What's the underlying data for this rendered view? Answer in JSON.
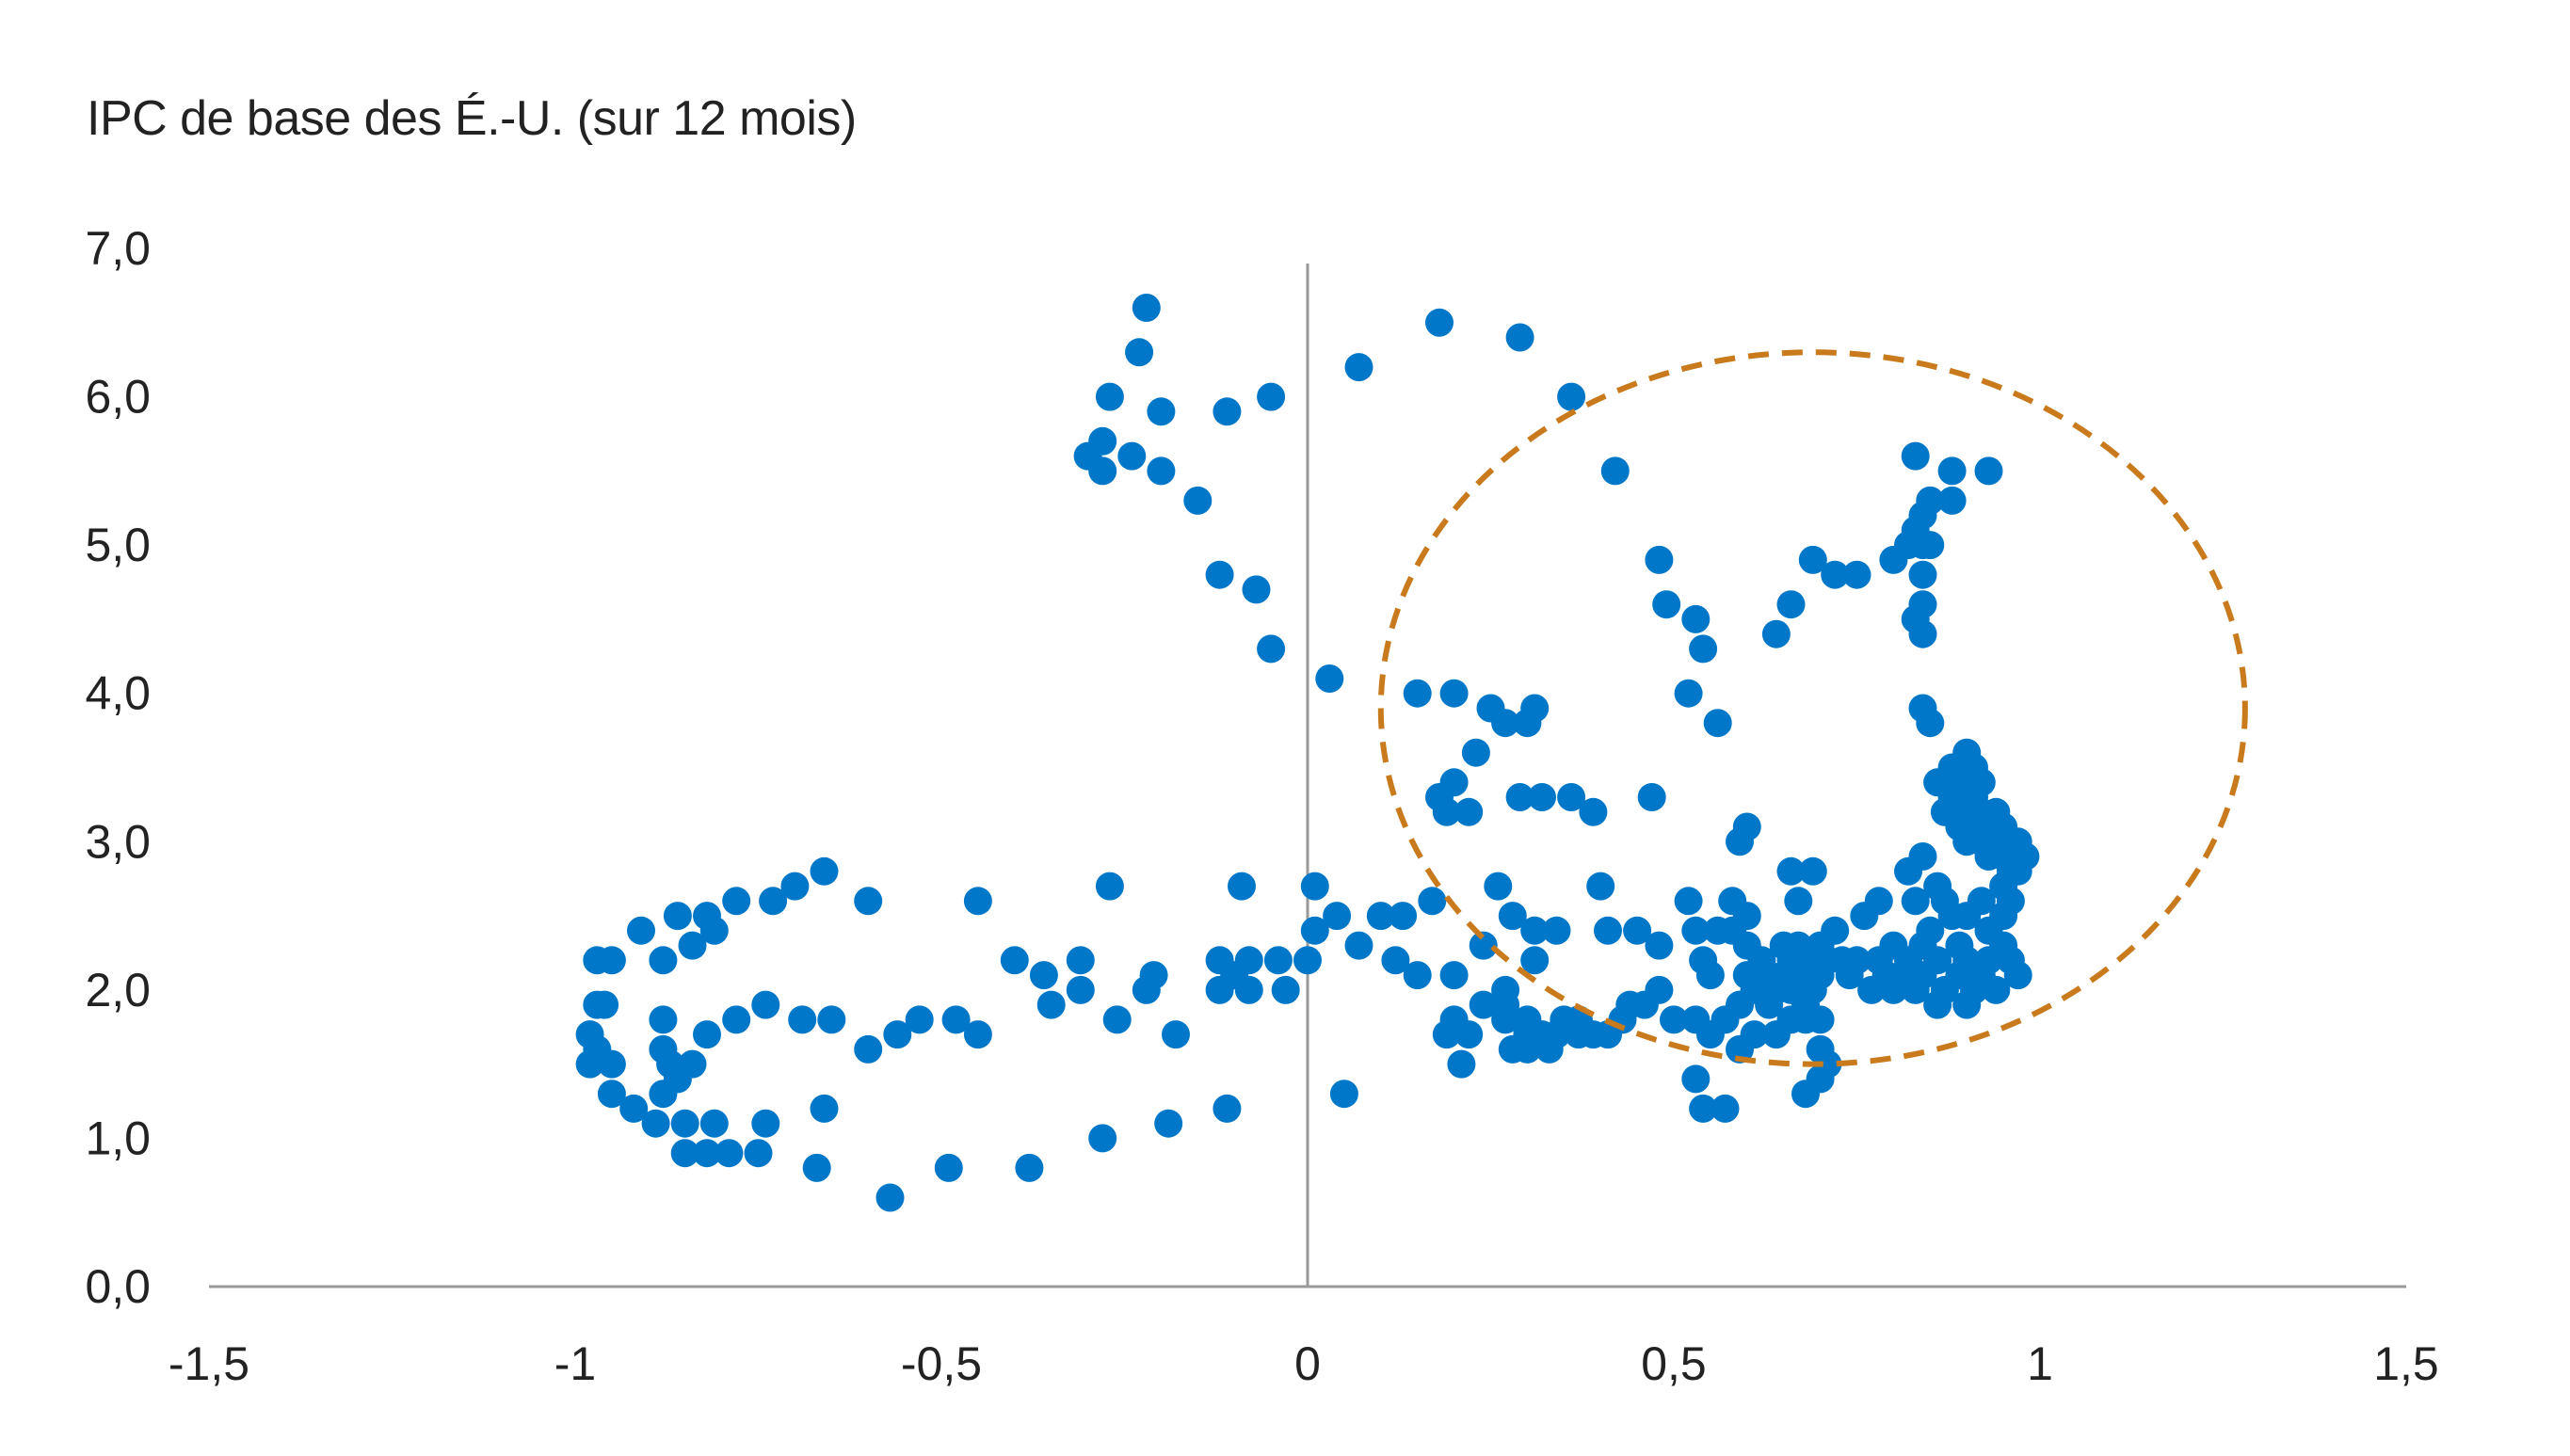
{
  "chart_data": {
    "type": "scatter",
    "title": "IPC de base des É.-U. (sur 12 mois)",
    "xlabel": "",
    "ylabel": "",
    "xlim": [
      -1.5,
      1.5
    ],
    "ylim": [
      0,
      7
    ],
    "x_ticks": [
      -1.5,
      -1,
      -0.5,
      0,
      0.5,
      1,
      1.5
    ],
    "x_tick_labels": [
      "-1,5",
      "-1",
      "-0,5",
      "0",
      "0,5",
      "1",
      "1,5"
    ],
    "y_ticks": [
      0,
      1,
      2,
      3,
      4,
      5,
      6,
      7
    ],
    "y_tick_labels": [
      "0,0",
      "1,0",
      "2,0",
      "3,0",
      "4,0",
      "5,0",
      "6,0",
      "7,0"
    ],
    "grid": false,
    "colors": {
      "points": "#0077c8",
      "highlight_ellipse": "#c97a1c",
      "axis": "#999999",
      "text": "#222222"
    },
    "annotation": {
      "type": "dashed-ellipse",
      "center": [
        0.69,
        3.9
      ],
      "x_radius": 0.59,
      "y_radius": 2.4
    },
    "points": [
      [
        -0.22,
        6.6
      ],
      [
        -0.23,
        6.3
      ],
      [
        -0.27,
        6.0
      ],
      [
        -0.2,
        5.9
      ],
      [
        -0.11,
        5.9
      ],
      [
        -0.05,
        6.0
      ],
      [
        -0.28,
        5.7
      ],
      [
        -0.3,
        5.6
      ],
      [
        -0.24,
        5.6
      ],
      [
        -0.28,
        5.5
      ],
      [
        -0.2,
        5.5
      ],
      [
        -0.15,
        5.3
      ],
      [
        -0.12,
        4.8
      ],
      [
        -0.07,
        4.7
      ],
      [
        -0.05,
        4.3
      ],
      [
        0.03,
        4.1
      ],
      [
        0.07,
        6.2
      ],
      [
        0.18,
        6.5
      ],
      [
        0.29,
        6.4
      ],
      [
        0.36,
        6.0
      ],
      [
        0.42,
        5.5
      ],
      [
        -0.66,
        2.8
      ],
      [
        -0.7,
        2.7
      ],
      [
        -0.73,
        2.6
      ],
      [
        -0.78,
        2.6
      ],
      [
        -0.6,
        2.6
      ],
      [
        -0.45,
        2.6
      ],
      [
        -0.27,
        2.7
      ],
      [
        -0.09,
        2.7
      ],
      [
        0.01,
        2.7
      ],
      [
        -0.82,
        2.5
      ],
      [
        -0.86,
        2.5
      ],
      [
        -0.91,
        2.4
      ],
      [
        -0.81,
        2.4
      ],
      [
        -0.84,
        2.3
      ],
      [
        -0.88,
        2.2
      ],
      [
        -0.95,
        2.2
      ],
      [
        -0.97,
        2.2
      ],
      [
        -0.36,
        2.1
      ],
      [
        -0.4,
        2.2
      ],
      [
        -0.31,
        2.2
      ],
      [
        -0.21,
        2.1
      ],
      [
        -0.22,
        2.0
      ],
      [
        -0.12,
        2.2
      ],
      [
        -0.1,
        2.1
      ],
      [
        -0.08,
        2.2
      ],
      [
        -0.04,
        2.2
      ],
      [
        0.0,
        2.2
      ],
      [
        -0.35,
        1.9
      ],
      [
        -0.31,
        2.0
      ],
      [
        -0.12,
        2.0
      ],
      [
        -0.08,
        2.0
      ],
      [
        -0.03,
        2.0
      ],
      [
        -0.96,
        1.9
      ],
      [
        -0.97,
        1.9
      ],
      [
        -0.74,
        1.9
      ],
      [
        -0.78,
        1.8
      ],
      [
        -0.88,
        1.8
      ],
      [
        -0.65,
        1.8
      ],
      [
        -0.69,
        1.8
      ],
      [
        -0.53,
        1.8
      ],
      [
        -0.48,
        1.8
      ],
      [
        -0.56,
        1.7
      ],
      [
        -0.45,
        1.7
      ],
      [
        -0.6,
        1.6
      ],
      [
        -0.26,
        1.8
      ],
      [
        -0.18,
        1.7
      ],
      [
        -0.98,
        1.7
      ],
      [
        -0.97,
        1.6
      ],
      [
        -0.88,
        1.6
      ],
      [
        -0.82,
        1.7
      ],
      [
        -0.84,
        1.5
      ],
      [
        -0.87,
        1.5
      ],
      [
        -0.95,
        1.5
      ],
      [
        -0.98,
        1.5
      ],
      [
        -0.86,
        1.4
      ],
      [
        -0.95,
        1.3
      ],
      [
        -0.92,
        1.2
      ],
      [
        -0.88,
        1.3
      ],
      [
        -0.66,
        1.2
      ],
      [
        -0.11,
        1.2
      ],
      [
        0.05,
        1.3
      ],
      [
        -0.89,
        1.1
      ],
      [
        -0.85,
        1.1
      ],
      [
        -0.81,
        1.1
      ],
      [
        -0.74,
        1.1
      ],
      [
        -0.28,
        1.0
      ],
      [
        -0.19,
        1.1
      ],
      [
        -0.85,
        0.9
      ],
      [
        -0.82,
        0.9
      ],
      [
        -0.79,
        0.9
      ],
      [
        -0.75,
        0.9
      ],
      [
        -0.67,
        0.8
      ],
      [
        -0.49,
        0.8
      ],
      [
        -0.38,
        0.8
      ],
      [
        -0.57,
        0.6
      ],
      [
        0.01,
        2.4
      ],
      [
        0.04,
        2.5
      ],
      [
        0.07,
        2.3
      ],
      [
        0.1,
        2.5
      ],
      [
        0.13,
        2.5
      ],
      [
        0.17,
        2.6
      ],
      [
        0.12,
        2.2
      ],
      [
        0.15,
        2.1
      ],
      [
        0.2,
        2.1
      ],
      [
        0.24,
        2.3
      ],
      [
        0.27,
        2.0
      ],
      [
        0.31,
        2.2
      ],
      [
        0.31,
        2.4
      ],
      [
        0.34,
        2.4
      ],
      [
        0.19,
        1.7
      ],
      [
        0.2,
        1.8
      ],
      [
        0.22,
        1.7
      ],
      [
        0.24,
        1.9
      ],
      [
        0.21,
        1.5
      ],
      [
        0.27,
        1.8
      ],
      [
        0.28,
        1.6
      ],
      [
        0.3,
        1.7
      ],
      [
        0.3,
        1.6
      ],
      [
        0.32,
        1.7
      ],
      [
        0.33,
        1.6
      ],
      [
        0.34,
        1.7
      ],
      [
        0.35,
        1.8
      ],
      [
        0.37,
        1.8
      ],
      [
        0.39,
        1.7
      ],
      [
        0.41,
        1.7
      ],
      [
        0.43,
        1.8
      ],
      [
        0.44,
        1.9
      ],
      [
        0.37,
        1.7
      ],
      [
        0.3,
        1.8
      ],
      [
        0.27,
        1.9
      ],
      [
        0.26,
        2.7
      ],
      [
        0.28,
        2.5
      ],
      [
        0.4,
        2.7
      ],
      [
        0.41,
        2.4
      ],
      [
        0.45,
        2.4
      ],
      [
        0.48,
        2.3
      ],
      [
        0.52,
        2.6
      ],
      [
        0.53,
        2.4
      ],
      [
        0.54,
        2.2
      ],
      [
        0.55,
        2.1
      ],
      [
        0.56,
        2.4
      ],
      [
        0.58,
        2.4
      ],
      [
        0.58,
        2.6
      ],
      [
        0.6,
        2.3
      ],
      [
        0.6,
        2.5
      ],
      [
        0.46,
        1.9
      ],
      [
        0.48,
        2.0
      ],
      [
        0.5,
        1.8
      ],
      [
        0.53,
        1.8
      ],
      [
        0.55,
        1.7
      ],
      [
        0.57,
        1.8
      ],
      [
        0.59,
        1.6
      ],
      [
        0.59,
        1.9
      ],
      [
        0.61,
        1.7
      ],
      [
        0.64,
        1.7
      ],
      [
        0.66,
        1.8
      ],
      [
        0.68,
        1.8
      ],
      [
        0.7,
        1.8
      ],
      [
        0.7,
        1.6
      ],
      [
        0.53,
        1.4
      ],
      [
        0.54,
        1.2
      ],
      [
        0.57,
        1.2
      ],
      [
        0.68,
        1.3
      ],
      [
        0.7,
        1.4
      ],
      [
        0.71,
        1.5
      ],
      [
        0.6,
        2.1
      ],
      [
        0.61,
        2.0
      ],
      [
        0.62,
        2.2
      ],
      [
        0.63,
        2.1
      ],
      [
        0.63,
        1.9
      ],
      [
        0.64,
        2.0
      ],
      [
        0.65,
        2.3
      ],
      [
        0.65,
        2.1
      ],
      [
        0.66,
        2.0
      ],
      [
        0.66,
        2.2
      ],
      [
        0.67,
        2.3
      ],
      [
        0.68,
        2.1
      ],
      [
        0.68,
        1.9
      ],
      [
        0.69,
        2.0
      ],
      [
        0.69,
        2.2
      ],
      [
        0.7,
        2.1
      ],
      [
        0.7,
        2.3
      ],
      [
        0.71,
        2.2
      ],
      [
        0.72,
        2.4
      ],
      [
        0.73,
        2.2
      ],
      [
        0.74,
        2.1
      ],
      [
        0.75,
        2.2
      ],
      [
        0.76,
        2.5
      ],
      [
        0.77,
        2.0
      ],
      [
        0.78,
        2.2
      ],
      [
        0.78,
        2.6
      ],
      [
        0.79,
        2.1
      ],
      [
        0.8,
        2.0
      ],
      [
        0.8,
        2.3
      ],
      [
        0.81,
        2.1
      ],
      [
        0.82,
        2.2
      ],
      [
        0.83,
        2.0
      ],
      [
        0.84,
        2.3
      ],
      [
        0.84,
        2.1
      ],
      [
        0.85,
        2.4
      ],
      [
        0.86,
        2.2
      ],
      [
        0.87,
        2.0
      ],
      [
        0.87,
        2.6
      ],
      [
        0.88,
        2.5
      ],
      [
        0.89,
        2.1
      ],
      [
        0.89,
        2.3
      ],
      [
        0.9,
        1.9
      ],
      [
        0.9,
        2.2
      ],
      [
        0.91,
        2.0
      ],
      [
        0.92,
        2.1
      ],
      [
        0.93,
        2.2
      ],
      [
        0.94,
        2.0
      ],
      [
        0.95,
        2.3
      ],
      [
        0.96,
        2.2
      ],
      [
        0.97,
        2.1
      ],
      [
        0.95,
        2.5
      ],
      [
        0.93,
        2.4
      ],
      [
        0.96,
        2.6
      ],
      [
        0.97,
        2.8
      ],
      [
        0.95,
        2.7
      ],
      [
        0.92,
        2.6
      ],
      [
        0.9,
        2.5
      ],
      [
        0.86,
        1.9
      ],
      [
        0.83,
        2.6
      ],
      [
        0.82,
        2.8
      ],
      [
        0.84,
        2.9
      ],
      [
        0.86,
        2.7
      ],
      [
        0.87,
        3.2
      ],
      [
        0.88,
        3.3
      ],
      [
        0.89,
        3.1
      ],
      [
        0.89,
        3.4
      ],
      [
        0.9,
        3.2
      ],
      [
        0.9,
        3.0
      ],
      [
        0.91,
        3.1
      ],
      [
        0.91,
        3.3
      ],
      [
        0.92,
        3.2
      ],
      [
        0.92,
        3.0
      ],
      [
        0.93,
        3.1
      ],
      [
        0.93,
        2.9
      ],
      [
        0.94,
        3.0
      ],
      [
        0.94,
        3.2
      ],
      [
        0.95,
        2.9
      ],
      [
        0.95,
        3.1
      ],
      [
        0.96,
        3.0
      ],
      [
        0.96,
        2.8
      ],
      [
        0.97,
        3.0
      ],
      [
        0.98,
        2.9
      ],
      [
        0.88,
        3.5
      ],
      [
        0.9,
        3.6
      ],
      [
        0.91,
        3.5
      ],
      [
        0.92,
        3.4
      ],
      [
        0.86,
        3.4
      ],
      [
        0.84,
        3.9
      ],
      [
        0.85,
        3.8
      ],
      [
        0.84,
        4.4
      ],
      [
        0.84,
        4.6
      ],
      [
        0.83,
        4.5
      ],
      [
        0.84,
        4.8
      ],
      [
        0.84,
        5.0
      ],
      [
        0.85,
        5.0
      ],
      [
        0.82,
        5.0
      ],
      [
        0.83,
        5.1
      ],
      [
        0.84,
        5.2
      ],
      [
        0.85,
        5.3
      ],
      [
        0.88,
        5.3
      ],
      [
        0.83,
        5.6
      ],
      [
        0.88,
        5.5
      ],
      [
        0.93,
        5.5
      ],
      [
        0.8,
        4.9
      ],
      [
        0.75,
        4.8
      ],
      [
        0.72,
        4.8
      ],
      [
        0.69,
        4.9
      ],
      [
        0.66,
        4.6
      ],
      [
        0.64,
        4.4
      ],
      [
        0.53,
        4.5
      ],
      [
        0.54,
        4.3
      ],
      [
        0.48,
        4.9
      ],
      [
        0.49,
        4.6
      ],
      [
        0.52,
        4.0
      ],
      [
        0.56,
        3.8
      ],
      [
        0.47,
        3.3
      ],
      [
        0.15,
        4.0
      ],
      [
        0.2,
        4.0
      ],
      [
        0.25,
        3.9
      ],
      [
        0.27,
        3.8
      ],
      [
        0.3,
        3.8
      ],
      [
        0.31,
        3.9
      ],
      [
        0.23,
        3.6
      ],
      [
        0.2,
        3.4
      ],
      [
        0.18,
        3.3
      ],
      [
        0.19,
        3.2
      ],
      [
        0.22,
        3.2
      ],
      [
        0.29,
        3.3
      ],
      [
        0.32,
        3.3
      ],
      [
        0.36,
        3.3
      ],
      [
        0.39,
        3.2
      ],
      [
        0.6,
        3.1
      ],
      [
        0.59,
        3.0
      ],
      [
        0.66,
        2.8
      ],
      [
        0.69,
        2.8
      ],
      [
        0.67,
        2.6
      ]
    ]
  }
}
